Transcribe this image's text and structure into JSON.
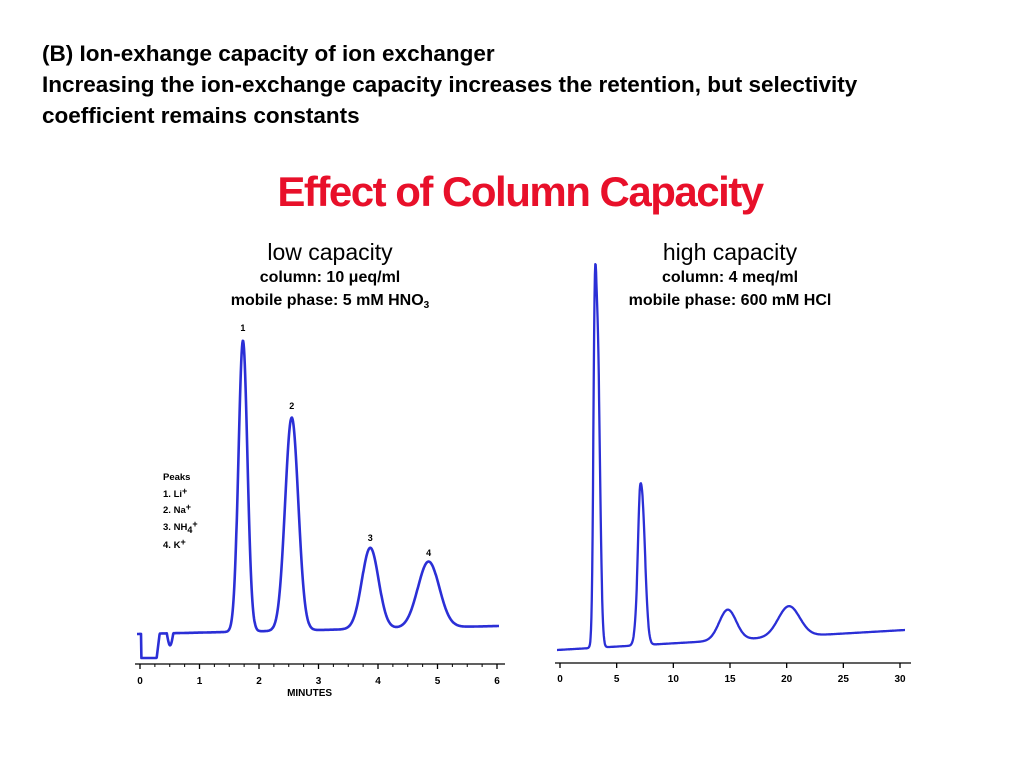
{
  "slide": {
    "heading": "(B) Ion-exhange capacity of ion exchanger",
    "line2": "Increasing the ion-exchange capacity increases the retention, but selectivity",
    "line3": "coefficient remains constants"
  },
  "figure_title": "Effect of Column Capacity",
  "panels": {
    "left": {
      "capacity": "low capacity",
      "column_prefix": "column: 10 ",
      "column_mu": "μ",
      "column_suffix": "eq/ml",
      "mobile_prefix": "mobile phase: 5 mM HNO",
      "mobile_sub": "3"
    },
    "right": {
      "capacity": "high capacity",
      "column": "column: 4 meq/ml",
      "mobile": "mobile phase: 600 mM HCl"
    }
  },
  "legend": {
    "title": "Peaks",
    "items": [
      {
        "num": "1.",
        "ion": "Li",
        "charge": "+"
      },
      {
        "num": "2.",
        "ion": "Na",
        "charge": "+"
      },
      {
        "num": "3.",
        "ion": "NH",
        "sub": "4",
        "charge": "+"
      },
      {
        "num": "4.",
        "ion": "K",
        "charge": "+"
      }
    ]
  },
  "colors": {
    "trace": "#2b2fd6",
    "title": "#e8102a",
    "axis": "#000000"
  },
  "chart_data": [
    {
      "type": "line",
      "title": "low capacity",
      "xlabel": "MINUTES",
      "ylabel": "",
      "xlim": [
        0,
        6
      ],
      "x_ticks": [
        "0",
        "1",
        "2",
        "3",
        "4",
        "5",
        "6"
      ],
      "peaks": [
        {
          "label": "1",
          "ion": "Li+",
          "retention_min": 1.73,
          "height": 0.97,
          "width": 0.075
        },
        {
          "label": "2",
          "ion": "Na+",
          "retention_min": 2.55,
          "height": 0.71,
          "width": 0.11
        },
        {
          "label": "3",
          "ion": "NH4+",
          "retention_min": 3.87,
          "height": 0.27,
          "width": 0.14
        },
        {
          "label": "4",
          "ion": "K+",
          "retention_min": 4.85,
          "height": 0.22,
          "width": 0.18
        }
      ]
    },
    {
      "type": "line",
      "title": "high capacity",
      "xlabel": "",
      "ylabel": "",
      "xlim": [
        0,
        30
      ],
      "x_ticks": [
        "0",
        "5",
        "10",
        "15",
        "20",
        "25",
        "30"
      ],
      "peaks": [
        {
          "label": "",
          "ion": "Li+",
          "retention_min": 3.3,
          "height": 1.03,
          "width": 0.22
        },
        {
          "label": "",
          "ion": "Na+",
          "retention_min": 7.2,
          "height": 0.5,
          "width": 0.3
        },
        {
          "label": "",
          "ion": "NH4+",
          "retention_min": 14.8,
          "height": 0.1,
          "width": 0.75
        },
        {
          "label": "",
          "ion": "K+",
          "retention_min": 20.2,
          "height": 0.1,
          "width": 0.95
        }
      ]
    }
  ]
}
